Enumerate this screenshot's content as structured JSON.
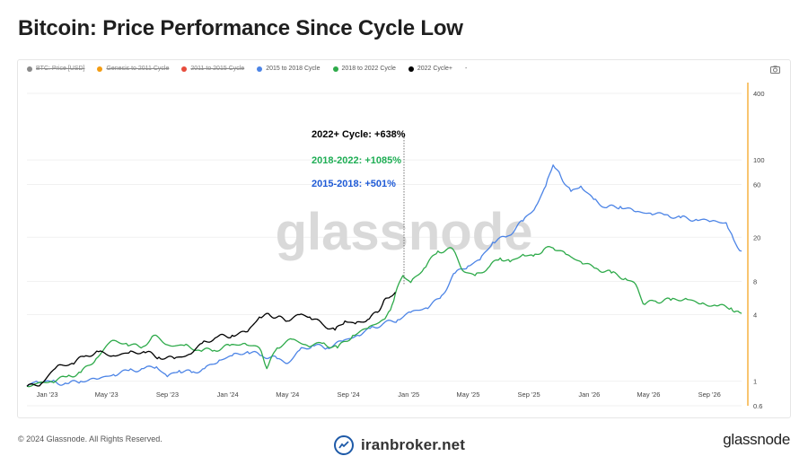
{
  "header": {
    "title": "Bitcoin: Price Performance Since Cycle Low"
  },
  "legend": [
    {
      "label": "BTC: Price [USD]",
      "color": "#8a8a8a",
      "active": false
    },
    {
      "label": "Genesis to 2011 Cycle",
      "color": "#f39c12",
      "active": false
    },
    {
      "label": "2011 to 2015 Cycle",
      "color": "#e74c3c",
      "active": false
    },
    {
      "label": "2015 to 2018 Cycle",
      "color": "#4c84e6",
      "active": true
    },
    {
      "label": "2018 to 2022 Cycle",
      "color": "#2eaa4a",
      "active": true
    },
    {
      "label": "2022 Cycle+",
      "color": "#000000",
      "active": true
    },
    {
      "label": "-",
      "color": "#ffffff",
      "active": true
    }
  ],
  "watermark": "glassnode",
  "footer": {
    "copyright": "© 2024 Glassnode. All Rights Reserved.",
    "brand": "glassnode",
    "site": "iranbroker.net"
  },
  "annotations": [
    {
      "text": "2022+ Cycle: +638%",
      "color": "#000000"
    },
    {
      "text": "2018-2022: +1085%",
      "color": "#1fae55"
    },
    {
      "text": "2015-2018: +501%",
      "color": "#1e5ad6"
    }
  ],
  "chart_data": {
    "type": "line",
    "title": "Bitcoin: Price Performance Since Cycle Low",
    "xlabel": "",
    "ylabel": "",
    "y_scale": "log",
    "ylim": [
      0.6,
      500
    ],
    "y_ticks": [
      400,
      100,
      60,
      20,
      8,
      4,
      1,
      0.6
    ],
    "x_ticks": [
      "Jan '23",
      "May '23",
      "Sep '23",
      "Jan '24",
      "May '24",
      "Sep '24",
      "Jan '25",
      "May '25",
      "Sep '25",
      "Jan '26",
      "May '26",
      "Sep '26"
    ],
    "x_range": [
      "2022-11-21",
      "2026-11-05"
    ],
    "legend_position": "top-left",
    "grid": true,
    "series": [
      {
        "name": "2015 to 2018 Cycle",
        "color": "#4c84e6",
        "points": [
          [
            "2022-11-21",
            0.9
          ],
          [
            "2022-12-10",
            1.0
          ],
          [
            "2023-01-10",
            0.98
          ],
          [
            "2023-02-10",
            0.95
          ],
          [
            "2023-03-10",
            1.0
          ],
          [
            "2023-04-15",
            1.05
          ],
          [
            "2023-05-15",
            1.15
          ],
          [
            "2023-06-15",
            1.25
          ],
          [
            "2023-07-15",
            1.3
          ],
          [
            "2023-08-10",
            1.35
          ],
          [
            "2023-09-01",
            1.1
          ],
          [
            "2023-09-25",
            1.25
          ],
          [
            "2023-10-20",
            1.2
          ],
          [
            "2023-11-15",
            1.3
          ],
          [
            "2023-12-15",
            1.55
          ],
          [
            "2024-01-10",
            1.7
          ],
          [
            "2024-02-10",
            1.85
          ],
          [
            "2024-03-10",
            1.7
          ],
          [
            "2024-04-10",
            1.6
          ],
          [
            "2024-05-01",
            1.45
          ],
          [
            "2024-05-25",
            1.9
          ],
          [
            "2024-06-20",
            2.1
          ],
          [
            "2024-07-20",
            2.0
          ],
          [
            "2024-08-20",
            2.3
          ],
          [
            "2024-09-20",
            2.6
          ],
          [
            "2024-10-15",
            3.0
          ],
          [
            "2024-11-10",
            3.3
          ],
          [
            "2024-12-10",
            3.6
          ],
          [
            "2025-01-05",
            4.2
          ],
          [
            "2025-02-05",
            4.6
          ],
          [
            "2025-03-05",
            5.6
          ],
          [
            "2025-04-05",
            9.5
          ],
          [
            "2025-05-01",
            11.0
          ],
          [
            "2025-05-25",
            12.5
          ],
          [
            "2025-06-20",
            18.0
          ],
          [
            "2025-07-20",
            20.5
          ],
          [
            "2025-08-20",
            28.0
          ],
          [
            "2025-09-15",
            38.0
          ],
          [
            "2025-10-05",
            58.0
          ],
          [
            "2025-10-20",
            90.0
          ],
          [
            "2025-11-05",
            70.0
          ],
          [
            "2025-11-25",
            52.0
          ],
          [
            "2025-12-15",
            58.0
          ],
          [
            "2026-01-10",
            44.0
          ],
          [
            "2026-02-05",
            37.0
          ],
          [
            "2026-03-05",
            38.0
          ],
          [
            "2026-04-05",
            34.0
          ],
          [
            "2026-05-05",
            33.0
          ],
          [
            "2026-06-05",
            32.0
          ],
          [
            "2026-07-05",
            30.0
          ],
          [
            "2026-08-05",
            29.0
          ],
          [
            "2026-09-05",
            28.0
          ],
          [
            "2026-10-05",
            27.0
          ],
          [
            "2026-10-20",
            19.0
          ],
          [
            "2026-11-05",
            15.0
          ]
        ]
      },
      {
        "name": "2018 to 2022 Cycle",
        "color": "#2eaa4a",
        "points": [
          [
            "2022-11-21",
            0.9
          ],
          [
            "2022-12-10",
            0.95
          ],
          [
            "2023-01-10",
            1.0
          ],
          [
            "2023-02-10",
            1.1
          ],
          [
            "2023-03-10",
            1.2
          ],
          [
            "2023-04-10",
            1.6
          ],
          [
            "2023-05-10",
            2.3
          ],
          [
            "2023-06-10",
            2.2
          ],
          [
            "2023-07-10",
            2.0
          ],
          [
            "2023-08-05",
            2.6
          ],
          [
            "2023-09-05",
            2.1
          ],
          [
            "2023-10-05",
            2.1
          ],
          [
            "2023-11-05",
            1.9
          ],
          [
            "2023-12-05",
            1.9
          ],
          [
            "2024-01-05",
            2.1
          ],
          [
            "2024-02-05",
            2.2
          ],
          [
            "2024-03-05",
            2.0
          ],
          [
            "2024-03-20",
            1.3
          ],
          [
            "2024-04-10",
            2.0
          ],
          [
            "2024-05-10",
            2.4
          ],
          [
            "2024-06-10",
            2.1
          ],
          [
            "2024-07-10",
            2.2
          ],
          [
            "2024-08-10",
            2.0
          ],
          [
            "2024-09-10",
            2.6
          ],
          [
            "2024-10-10",
            3.0
          ],
          [
            "2024-11-10",
            3.6
          ],
          [
            "2024-11-25",
            4.4
          ],
          [
            "2024-12-05",
            6.2
          ],
          [
            "2024-12-20",
            9.0
          ],
          [
            "2025-01-05",
            7.8
          ],
          [
            "2025-02-01",
            10.5
          ],
          [
            "2025-03-01",
            15.0
          ],
          [
            "2025-04-01",
            15.5
          ],
          [
            "2025-04-20",
            10.0
          ],
          [
            "2025-05-15",
            9.0
          ],
          [
            "2025-06-10",
            10.5
          ],
          [
            "2025-07-05",
            13.0
          ],
          [
            "2025-07-25",
            12.0
          ],
          [
            "2025-08-20",
            14.0
          ],
          [
            "2025-09-10",
            13.5
          ],
          [
            "2025-10-01",
            15.5
          ],
          [
            "2025-10-20",
            16.0
          ],
          [
            "2025-11-15",
            14.0
          ],
          [
            "2025-12-15",
            12.0
          ],
          [
            "2026-01-15",
            10.5
          ],
          [
            "2026-02-15",
            9.5
          ],
          [
            "2026-03-15",
            8.5
          ],
          [
            "2026-04-05",
            7.5
          ],
          [
            "2026-04-20",
            5.0
          ],
          [
            "2026-05-15",
            5.3
          ],
          [
            "2026-06-15",
            5.4
          ],
          [
            "2026-07-15",
            5.6
          ],
          [
            "2026-08-15",
            5.0
          ],
          [
            "2026-09-15",
            4.8
          ],
          [
            "2026-10-15",
            4.6
          ],
          [
            "2026-10-25",
            4.3
          ],
          [
            "2026-11-05",
            4.1
          ]
        ]
      },
      {
        "name": "2022 Cycle+",
        "color": "#000000",
        "points": [
          [
            "2022-11-21",
            0.9
          ],
          [
            "2022-12-20",
            0.95
          ],
          [
            "2023-01-20",
            1.35
          ],
          [
            "2023-02-20",
            1.45
          ],
          [
            "2023-03-20",
            1.7
          ],
          [
            "2023-04-15",
            1.85
          ],
          [
            "2023-05-15",
            1.7
          ],
          [
            "2023-06-15",
            1.8
          ],
          [
            "2023-07-15",
            1.85
          ],
          [
            "2023-08-15",
            1.65
          ],
          [
            "2023-09-15",
            1.6
          ],
          [
            "2023-10-15",
            1.75
          ],
          [
            "2023-11-10",
            2.2
          ],
          [
            "2023-12-10",
            2.5
          ],
          [
            "2024-01-10",
            2.6
          ],
          [
            "2024-02-10",
            2.8
          ],
          [
            "2024-03-05",
            3.8
          ],
          [
            "2024-03-20",
            4.1
          ],
          [
            "2024-04-10",
            3.8
          ],
          [
            "2024-05-01",
            3.5
          ],
          [
            "2024-05-25",
            4.0
          ],
          [
            "2024-06-15",
            3.8
          ],
          [
            "2024-07-10",
            3.3
          ],
          [
            "2024-08-05",
            2.9
          ],
          [
            "2024-08-25",
            3.5
          ],
          [
            "2024-09-15",
            3.3
          ],
          [
            "2024-10-10",
            3.6
          ],
          [
            "2024-10-30",
            4.2
          ],
          [
            "2024-11-12",
            5.4
          ],
          [
            "2024-11-25",
            5.8
          ],
          [
            "2024-12-05",
            6.38
          ]
        ]
      }
    ]
  }
}
